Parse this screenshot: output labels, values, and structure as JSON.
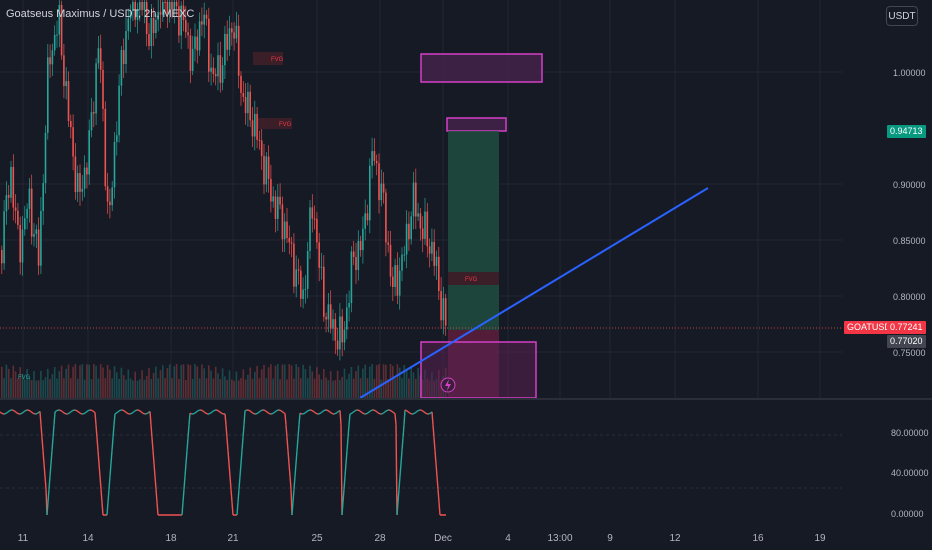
{
  "header": {
    "title": "Goatseus Maximus / USDT, 2h, MEXC",
    "currency_button": "USDT"
  },
  "price_axis": {
    "labels": [
      "1.00000",
      "0.90000",
      "0.85000",
      "0.80000",
      "0.75000"
    ],
    "target_price": "0.94713",
    "symbol_tag": "GOATUSDT",
    "last_price": "0.77241",
    "marker_price": "0.77020"
  },
  "oscillator_axis": {
    "labels": [
      "80.00000",
      "40.00000",
      "0.00000"
    ]
  },
  "time_axis": {
    "labels": [
      "11",
      "14",
      "18",
      "21",
      "25",
      "28",
      "Dec",
      "4",
      "13:00",
      "9",
      "12",
      "16",
      "19"
    ]
  },
  "annotations": {
    "fvg_labels": [
      "FVG",
      "FVG",
      "FVG",
      "FVG"
    ]
  },
  "colors": {
    "background": "#161a25",
    "up": "#26a69a",
    "down": "#ef5350",
    "trendline": "#2962ff",
    "zone_border": "#d43fc7",
    "target_zone": "#1e4d3f",
    "stop_zone": "#5e1f3e"
  },
  "icons": {
    "alert": "lightning-icon"
  }
}
